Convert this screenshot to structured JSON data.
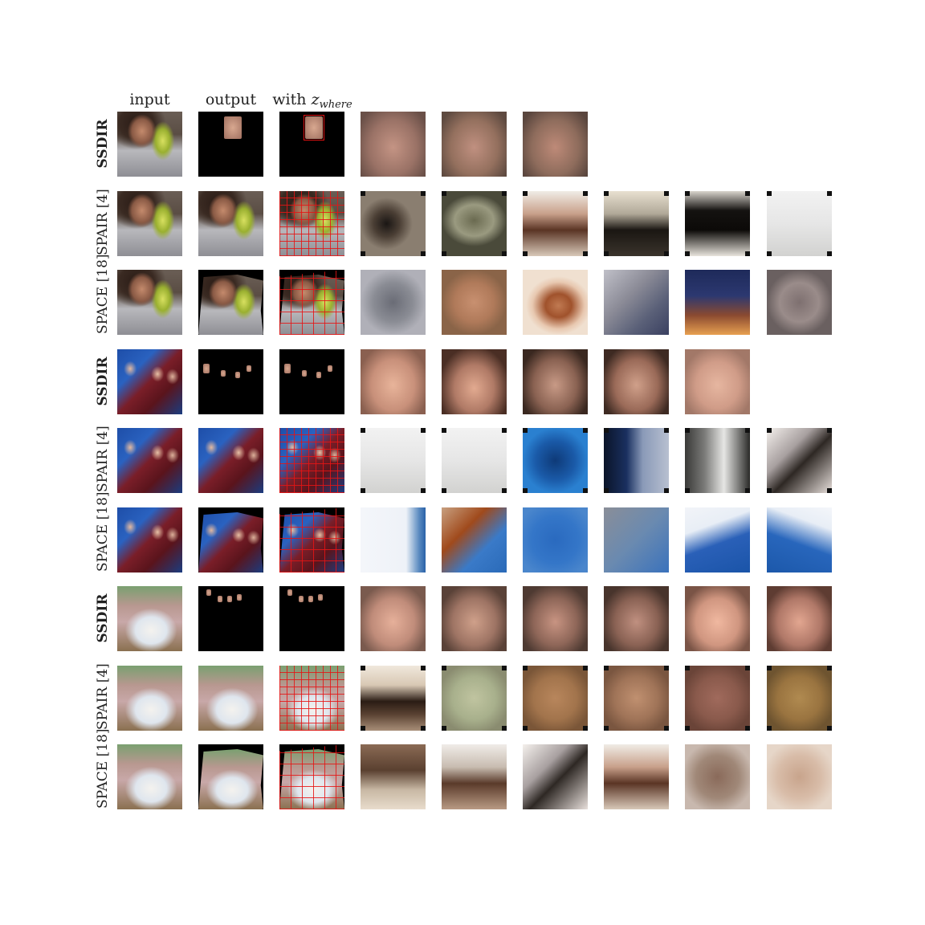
{
  "column_headers": {
    "input": "input",
    "output": "output",
    "with_prefix": "with",
    "z_symbol": "z",
    "z_subscript": "where"
  },
  "rows": [
    {
      "label": "SSDIR",
      "bold": true,
      "scene": "man",
      "output": "single-face",
      "crops": [
        "face-a",
        "face-b",
        "face-c"
      ]
    },
    {
      "label": "SPAIR [4]",
      "bold": false,
      "scene": "man",
      "output": "full",
      "crops": [
        "dark-blur",
        "olive-blur",
        "brown-white",
        "dark-frame",
        "black-frame",
        "white-frame"
      ]
    },
    {
      "label": "SPACE [18]",
      "bold": false,
      "scene": "man",
      "output": "partial",
      "crops": [
        "grey-blur",
        "tan-blur",
        "orange-face",
        "grey-purple",
        "navy-orange",
        "grey-mauve"
      ]
    },
    {
      "label": "SSDIR",
      "bold": true,
      "scene": "band",
      "output": "few-faces",
      "crops": [
        "face-d",
        "face-e",
        "face-f",
        "face-g",
        "face-h"
      ]
    },
    {
      "label": "SPAIR [4]",
      "bold": false,
      "scene": "band",
      "output": "full",
      "crops": [
        "white-frame",
        "white-frame",
        "blue-frame",
        "navy-frame",
        "grey-stripe",
        "white-dark"
      ]
    },
    {
      "label": "SPACE [18]",
      "bold": false,
      "scene": "band",
      "output": "partial",
      "crops": [
        "white-blue",
        "rust-blue",
        "blue",
        "grey-blue",
        "blue-white",
        "blue-white2"
      ]
    },
    {
      "label": "SSDIR",
      "bold": true,
      "scene": "kids",
      "output": "few-faces",
      "crops": [
        "face-i",
        "face-j",
        "face-k",
        "face-l",
        "face-m",
        "face-n"
      ]
    },
    {
      "label": "SPAIR [4]",
      "bold": false,
      "scene": "kids",
      "output": "full",
      "crops": [
        "cream-dark",
        "pale-green",
        "tan-frame",
        "tan-frame2",
        "mauve-frame",
        "ochre-frame"
      ]
    },
    {
      "label": "SPACE [18]",
      "bold": false,
      "scene": "kids",
      "output": "partial",
      "crops": [
        "brown-cream",
        "white-brown",
        "white-dark",
        "brown-white",
        "brown-grey",
        "tan-soft"
      ]
    }
  ],
  "colors": {
    "bbox": "#e01010",
    "background": "#ffffff"
  }
}
